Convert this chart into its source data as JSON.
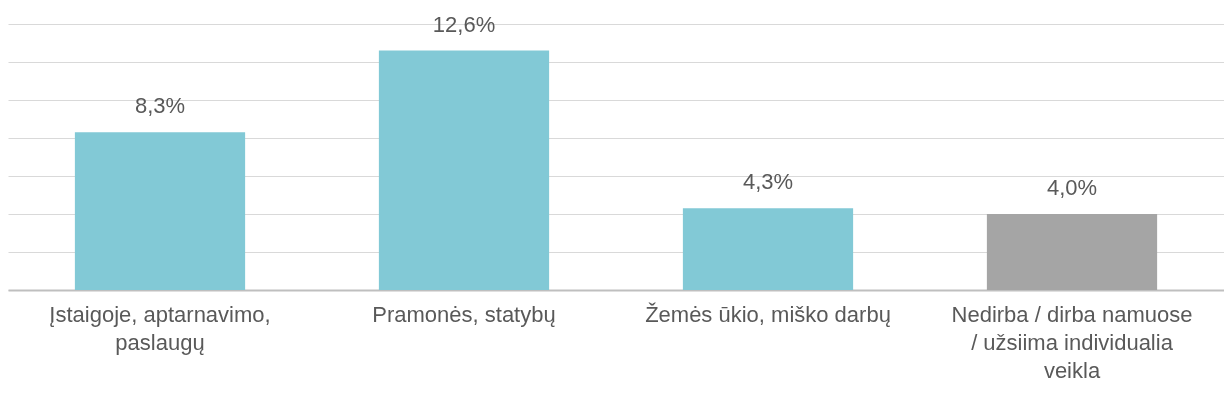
{
  "chart_data": {
    "type": "bar",
    "categories": [
      "Įstaigoje, aptarnavimo, paslaugų",
      "Pramonės, statybų",
      "Žemės ūkio, miško darbų",
      "Nedirba / dirba namuose / užsiima individualia veikla"
    ],
    "values": [
      8.3,
      12.6,
      4.3,
      4.0
    ],
    "colors": [
      "#82c9d6",
      "#82c9d6",
      "#82c9d6",
      "#a5a5a5"
    ],
    "value_labels": [
      "8,3%",
      "12,6%",
      "4,3%",
      "4,0%"
    ],
    "ylim": [
      0,
      14
    ],
    "yticks": [
      {
        "value": 0,
        "label": null
      },
      {
        "value": 2,
        "label": null
      },
      {
        "value": 4,
        "label": null
      },
      {
        "value": 6,
        "label": null
      },
      {
        "value": 8,
        "label": null
      },
      {
        "value": 10,
        "label": null
      },
      {
        "value": 12,
        "label": null
      },
      {
        "value": 14,
        "label": null
      }
    ],
    "grid": "y"
  }
}
